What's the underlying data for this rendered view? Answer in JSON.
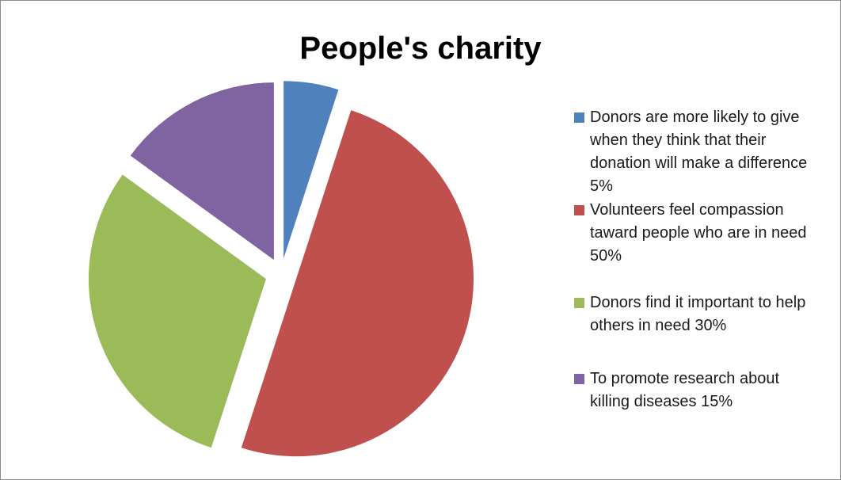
{
  "chart_data": {
    "type": "pie",
    "title": "People's charity",
    "exploded": true,
    "legend_position": "right",
    "slices": [
      {
        "label": "Donors are more likely to give when they think that their donation will make a difference 5%",
        "value": 5,
        "color": "#4f81bd"
      },
      {
        "label": "Volunteers feel compassion taward people who are in need 50%",
        "value": 50,
        "color": "#c0504d"
      },
      {
        "label": "Donors find it important to help others in need 30%",
        "value": 30,
        "color": "#9bbb59"
      },
      {
        "label": "To promote research about killing diseases 15%",
        "value": 15,
        "color": "#8064a2"
      }
    ]
  }
}
